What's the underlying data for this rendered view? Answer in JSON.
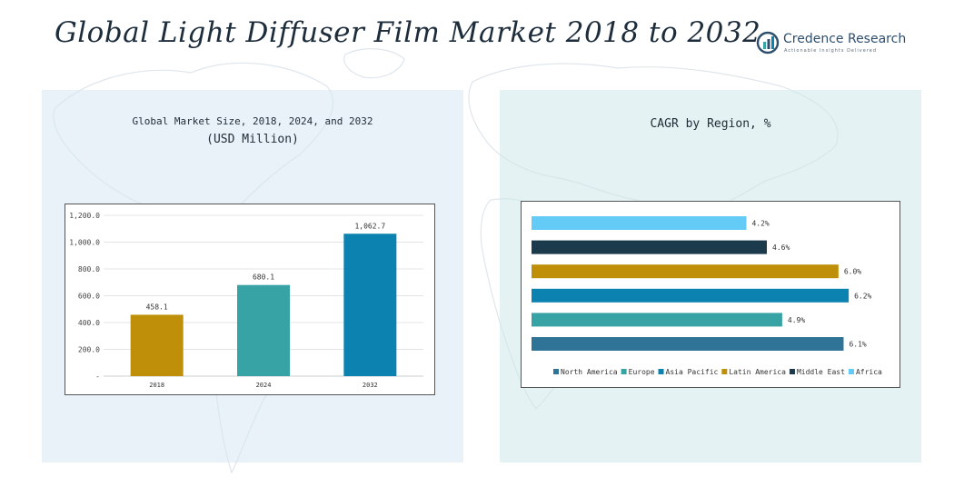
{
  "page_title": "Global Light Diffuser Film Market 2018 to 2032",
  "brand": {
    "name": "Credence Research",
    "tagline": "Actionable Insights Delivered",
    "icon": "credence-logo-icon"
  },
  "left_panel": {
    "title_line1": "Global Market Size, 2018, 2024, and 2032",
    "title_line2": "(USD Million)"
  },
  "right_panel": {
    "title": "CAGR by Region, %"
  },
  "chart_data": [
    {
      "type": "bar",
      "title": "Global Market Size, 2018, 2024, and 2032 (USD Million)",
      "categories": [
        "2018",
        "2024",
        "2032"
      ],
      "values": [
        458.1,
        680.1,
        1062.7
      ],
      "value_labels": [
        "458.1",
        "680.1",
        "1,062.7"
      ],
      "colors": [
        "#c08f0a",
        "#38a3a5",
        "#0b82b0"
      ],
      "ylim": [
        0,
        1200
      ],
      "yticks": [
        0,
        200,
        400,
        600,
        800,
        1000,
        1200
      ],
      "ytick_labels": [
        "-",
        "200.0",
        "400.0",
        "600.0",
        "800.0",
        "1,000.0",
        "1,200.0"
      ],
      "grid": true
    },
    {
      "type": "bar",
      "orientation": "horizontal",
      "title": "CAGR by Region, %",
      "series": [
        {
          "name": "North America",
          "value": 6.1,
          "label": "6.1%",
          "color": "#2f7496"
        },
        {
          "name": "Europe",
          "value": 4.9,
          "label": "4.9%",
          "color": "#38a3a5"
        },
        {
          "name": "Asia Pacific",
          "value": 6.2,
          "label": "6.2%",
          "color": "#0b82b0"
        },
        {
          "name": "Latin America",
          "value": 6.0,
          "label": "6.0%",
          "color": "#c08f0a"
        },
        {
          "name": "Middle East",
          "value": 4.6,
          "label": "4.6%",
          "color": "#1b3a4b"
        },
        {
          "name": "Africa",
          "value": 4.2,
          "label": "4.2%",
          "color": "#63cbf5"
        }
      ],
      "xlim": [
        0,
        6.5
      ],
      "legend": "bottom"
    }
  ]
}
